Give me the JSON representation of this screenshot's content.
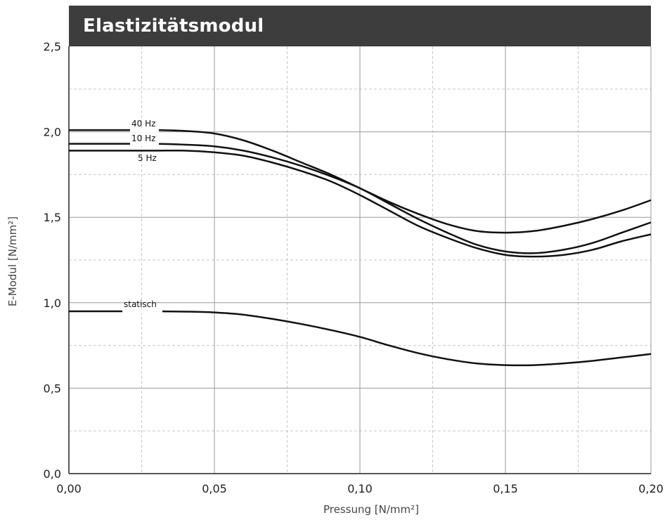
{
  "colors": {
    "title_bg": "#3d3d3d",
    "title_text": "#ffffff",
    "curve": "#111111",
    "grid_major": "#9a9a9a",
    "grid_minor": "#c8c8c8",
    "axis": "#222222"
  },
  "chart_data": {
    "type": "line",
    "title": "Elastizitätsmodul",
    "xlabel": "Pressung [N/mm²]",
    "ylabel": "E-Modul [N/mm²]",
    "xlim": [
      0,
      0.2
    ],
    "ylim": [
      0,
      2.5
    ],
    "x_ticks": [
      0,
      0.05,
      0.1,
      0.15,
      0.2
    ],
    "x_tick_labels": [
      "0,00",
      "0,05",
      "0,10",
      "0,15",
      "0,20"
    ],
    "y_ticks": [
      0,
      0.5,
      1.0,
      1.5,
      2.0,
      2.5
    ],
    "y_tick_labels": [
      "0,0",
      "0,5",
      "1,0",
      "1,5",
      "2,0",
      "2,5"
    ],
    "grid": true,
    "minor_grid": true,
    "legend": "inline labels",
    "series": [
      {
        "name": "40 Hz",
        "x": [
          0,
          0.01,
          0.02,
          0.03,
          0.04,
          0.05,
          0.06,
          0.07,
          0.08,
          0.09,
          0.1,
          0.11,
          0.12,
          0.13,
          0.14,
          0.15,
          0.16,
          0.17,
          0.18,
          0.19,
          0.2
        ],
        "y": [
          2.01,
          2.01,
          2.01,
          2.01,
          2.005,
          1.99,
          1.95,
          1.89,
          1.82,
          1.75,
          1.67,
          1.59,
          1.52,
          1.46,
          1.42,
          1.41,
          1.42,
          1.45,
          1.49,
          1.54,
          1.6
        ]
      },
      {
        "name": "10 Hz",
        "x": [
          0,
          0.01,
          0.02,
          0.03,
          0.04,
          0.05,
          0.06,
          0.07,
          0.08,
          0.09,
          0.1,
          0.11,
          0.12,
          0.13,
          0.14,
          0.15,
          0.16,
          0.17,
          0.18,
          0.19,
          0.2
        ],
        "y": [
          1.93,
          1.93,
          1.93,
          1.93,
          1.925,
          1.915,
          1.89,
          1.85,
          1.8,
          1.74,
          1.67,
          1.58,
          1.49,
          1.41,
          1.34,
          1.3,
          1.29,
          1.31,
          1.35,
          1.41,
          1.47
        ]
      },
      {
        "name": "5 Hz",
        "x": [
          0,
          0.01,
          0.02,
          0.03,
          0.04,
          0.05,
          0.06,
          0.07,
          0.08,
          0.09,
          0.1,
          0.11,
          0.12,
          0.13,
          0.14,
          0.15,
          0.16,
          0.17,
          0.18,
          0.19,
          0.2
        ],
        "y": [
          1.89,
          1.89,
          1.89,
          1.89,
          1.89,
          1.88,
          1.86,
          1.82,
          1.77,
          1.71,
          1.63,
          1.54,
          1.45,
          1.38,
          1.32,
          1.28,
          1.27,
          1.28,
          1.31,
          1.36,
          1.4
        ]
      },
      {
        "name": "statisch",
        "x": [
          0,
          0.01,
          0.02,
          0.03,
          0.04,
          0.05,
          0.06,
          0.07,
          0.08,
          0.09,
          0.1,
          0.11,
          0.12,
          0.13,
          0.14,
          0.15,
          0.16,
          0.17,
          0.18,
          0.19,
          0.2
        ],
        "y": [
          0.95,
          0.95,
          0.95,
          0.95,
          0.948,
          0.943,
          0.93,
          0.905,
          0.875,
          0.84,
          0.8,
          0.75,
          0.705,
          0.67,
          0.645,
          0.635,
          0.635,
          0.645,
          0.66,
          0.68,
          0.7
        ]
      }
    ]
  }
}
